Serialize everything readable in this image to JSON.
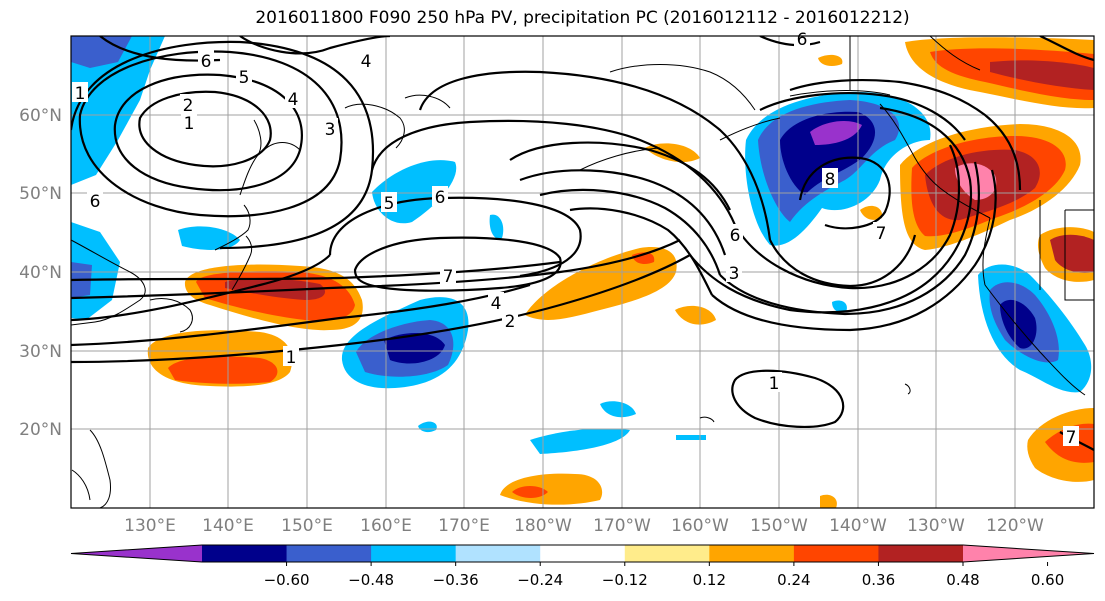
{
  "title": "2016011800 F090 250 hPa PV, precipitation PC (2016012112 - 2016012212)",
  "lat_labels": [
    "60°N",
    "50°N",
    "40°N",
    "30°N",
    "20°N"
  ],
  "lon_labels": [
    "130°E",
    "140°E",
    "150°E",
    "160°E",
    "170°E",
    "180°W",
    "170°W",
    "160°W",
    "150°W",
    "140°W",
    "130°W",
    "120°W"
  ],
  "colorbar": {
    "colors": [
      "#9932cc",
      "#00008b",
      "#3a5fcd",
      "#00bfff",
      "#b0e2ff",
      "#ffffff",
      "#ffec8b",
      "#ffa500",
      "#ff4500",
      "#b22222",
      "#ff82ab"
    ],
    "tick_labels": [
      "−0.60",
      "−0.48",
      "−0.36",
      "−0.24",
      "−0.12",
      "0.12",
      "0.24",
      "0.36",
      "0.48",
      "0.60"
    ]
  },
  "contour_labels": [
    "6",
    "5",
    "4",
    "2",
    "1",
    "3",
    "6",
    "5",
    "6",
    "7",
    "4",
    "2",
    "1",
    "7",
    "3",
    "6",
    "8",
    "7",
    "1",
    "4",
    "1",
    "6"
  ]
}
